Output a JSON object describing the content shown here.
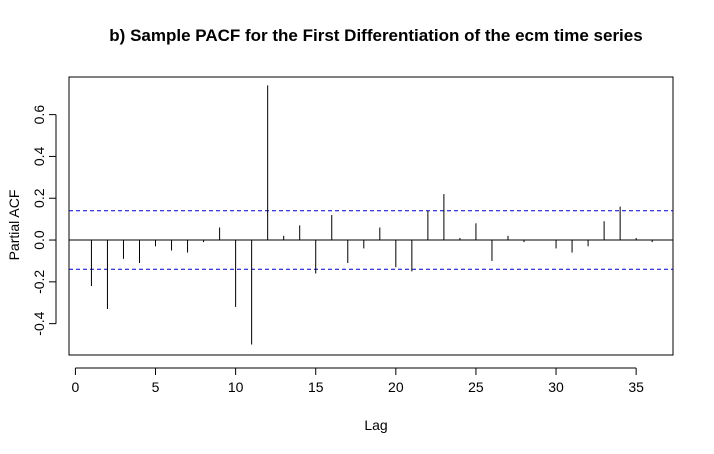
{
  "chart_data": {
    "type": "bar",
    "title": "b) Sample PACF for the First Differentiation of the ecm time series",
    "xlabel": "Lag",
    "ylabel": "Partial ACF",
    "xlim": [
      -0.4,
      37.3
    ],
    "ylim": [
      -0.55,
      0.78
    ],
    "xticks": [
      0,
      5,
      10,
      15,
      20,
      25,
      30,
      35
    ],
    "yticks": [
      -0.4,
      -0.2,
      0.0,
      0.2,
      0.4,
      0.6
    ],
    "ytick_labels": [
      "-0.4",
      "-0.2",
      "0.0",
      "0.2",
      "0.4",
      "0.6"
    ],
    "confidence_band": 0.14,
    "colors": {
      "spike": "#000000",
      "band": "#0000cc",
      "axis": "#000000"
    },
    "lags": [
      1,
      2,
      3,
      4,
      5,
      6,
      7,
      8,
      9,
      10,
      11,
      12,
      13,
      14,
      15,
      16,
      17,
      18,
      19,
      20,
      21,
      22,
      23,
      24,
      25,
      26,
      27,
      28,
      29,
      30,
      31,
      32,
      33,
      34,
      35,
      36
    ],
    "values": [
      -0.22,
      -0.33,
      -0.09,
      -0.11,
      -0.03,
      -0.05,
      -0.06,
      -0.01,
      0.06,
      -0.32,
      -0.5,
      0.74,
      0.02,
      0.07,
      -0.16,
      0.12,
      -0.11,
      -0.04,
      0.06,
      -0.13,
      -0.15,
      0.14,
      0.22,
      0.01,
      0.08,
      -0.1,
      0.02,
      -0.01,
      0.0,
      -0.04,
      -0.06,
      -0.03,
      0.09,
      0.16,
      0.01,
      -0.01
    ]
  }
}
